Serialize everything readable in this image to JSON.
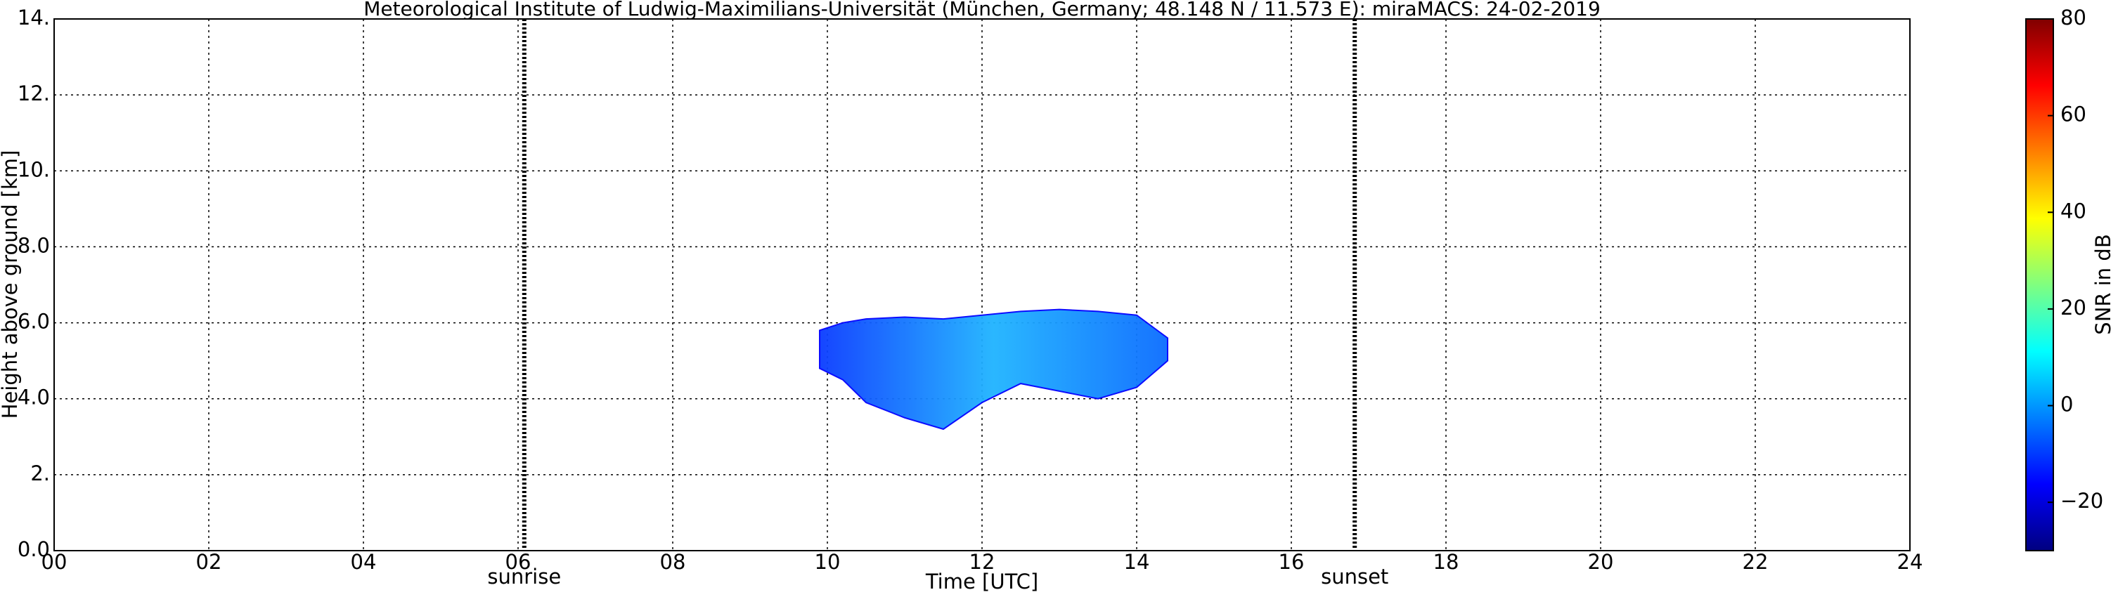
{
  "chart_data": {
    "type": "heatmap",
    "title": "Meteorological Institute of Ludwig-Maximilians-Universität (München, Germany; 48.148 N / 11.573 E):    miraMACS: 24-02-2019",
    "x_label": "Time [UTC]",
    "y_label": "Height above ground [km]",
    "xlim": [
      0,
      24
    ],
    "xticks": [
      {
        "value": 0,
        "label": "00"
      },
      {
        "value": 2,
        "label": "02"
      },
      {
        "value": 4,
        "label": "04"
      },
      {
        "value": 6,
        "label": "06"
      },
      {
        "value": 8,
        "label": "08"
      },
      10,
      12,
      14,
      16,
      18,
      20,
      22,
      24
    ],
    "ylim": [
      0,
      14
    ],
    "yticks": [
      {
        "value": 0,
        "label": "0.0"
      },
      {
        "value": 2,
        "label": "2."
      },
      {
        "value": 4,
        "label": "4.0"
      },
      {
        "value": 6,
        "label": "6.0"
      },
      {
        "value": 8,
        "label": "8.0"
      },
      {
        "value": 10,
        "label": "10."
      },
      {
        "value": 12,
        "label": "12."
      },
      {
        "value": 14,
        "label": "14."
      }
    ],
    "grid": true,
    "events": [
      {
        "label": "sunrise",
        "x": 6.08
      },
      {
        "label": "sunset",
        "x": 16.82
      }
    ],
    "echo": {
      "x": [
        9.9,
        10.2,
        10.5,
        11,
        11.5,
        12,
        12.5,
        13,
        13.5,
        14,
        14.4
      ],
      "top": [
        5.8,
        6.0,
        6.1,
        6.15,
        6.1,
        6.2,
        6.3,
        6.35,
        6.3,
        6.2,
        5.6
      ],
      "base": [
        4.8,
        4.5,
        3.9,
        3.5,
        3.2,
        3.9,
        4.4,
        4.2,
        4.0,
        4.3,
        5.0
      ],
      "color": "#1a8cff"
    },
    "colorbar": {
      "label": "SNR in dB",
      "colormap": "jet",
      "lim": [
        -30,
        80
      ],
      "ticks": [
        {
          "value": -20,
          "label": "−20"
        },
        0,
        20,
        40,
        60,
        80
      ]
    }
  }
}
